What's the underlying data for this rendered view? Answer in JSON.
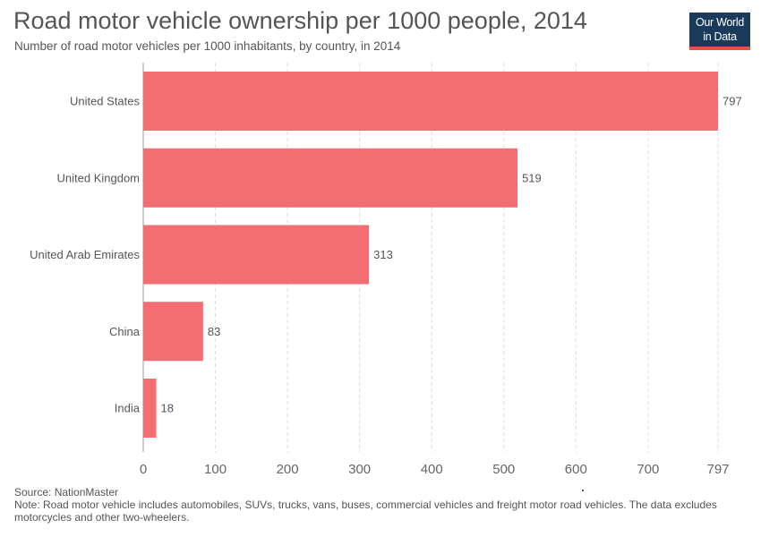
{
  "header": {
    "title": "Road motor vehicle ownership per 1000 people, 2014",
    "subtitle": "Number of road motor vehicles per 1000 inhabitants, by country, in 2014"
  },
  "logo": {
    "line1": "Our World",
    "line2": "in Data"
  },
  "colors": {
    "bar": "#f26e72",
    "grid": "#dddddd",
    "text": "#555555",
    "logo_bg": "#1a3a5c",
    "logo_accent": "#e5524a"
  },
  "chart_data": {
    "type": "bar",
    "orientation": "horizontal",
    "categories": [
      "United States",
      "United Kingdom",
      "United Arab Emirates",
      "China",
      "India"
    ],
    "values": [
      797,
      519,
      313,
      83,
      18
    ],
    "value_labels": [
      "797",
      "519",
      "313",
      "83",
      "18"
    ],
    "x_ticks": [
      0,
      100,
      200,
      300,
      400,
      500,
      600,
      700,
      797
    ],
    "x_tick_labels": [
      "0",
      "100",
      "200",
      "300",
      "400",
      "500",
      "600",
      "700",
      "797"
    ],
    "xlim": [
      0,
      797
    ],
    "grid": "vertical dashed"
  },
  "footer": {
    "source": "Source: NationMaster",
    "note": "Note: Road motor vehicle includes automobiles, SUVs, trucks, vans, buses, commercial vehicles and freight motor road vehicles. The data excludes motorcycles and other two-wheelers."
  }
}
